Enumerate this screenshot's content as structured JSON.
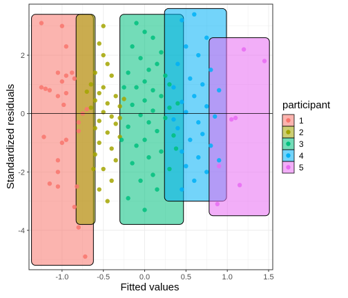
{
  "chart_data": {
    "type": "scatter",
    "title": "",
    "xlabel": "Fitted values",
    "ylabel": "Standardized residuals",
    "xlim": [
      -1.4,
      1.55
    ],
    "ylim": [
      -5.35,
      3.75
    ],
    "x_ticks": [
      -1.0,
      -0.5,
      0.0,
      0.5,
      1.0,
      1.5
    ],
    "x_tick_labels": [
      "-1.0",
      "-0.5",
      "0.0",
      "0.5",
      "1.0",
      "1.5"
    ],
    "y_ticks": [
      -4,
      -2,
      0,
      2
    ],
    "y_tick_labels": [
      "-4",
      "-2",
      "0",
      "2"
    ],
    "grid": true,
    "reference_line_y": 0,
    "legend": {
      "title": "participant",
      "position": "right",
      "entries": [
        "1",
        "2",
        "3",
        "4",
        "5"
      ]
    },
    "series": [
      {
        "name": "1",
        "color": "#F8766D",
        "box": {
          "xmin": -1.37,
          "xmax": -0.62,
          "ymin": -5.2,
          "ymax": 3.4
        },
        "points": [
          [
            -1.25,
            3.1
          ],
          [
            -1.0,
            3.0
          ],
          [
            -0.95,
            2.3
          ],
          [
            -1.05,
            1.4
          ],
          [
            -0.95,
            1.3
          ],
          [
            -1.0,
            1.1
          ],
          [
            -0.88,
            1.4
          ],
          [
            -0.85,
            1.2
          ],
          [
            -1.2,
            0.85
          ],
          [
            -1.15,
            0.8
          ],
          [
            -1.25,
            0.9
          ],
          [
            -1.05,
            0.6
          ],
          [
            -0.95,
            0.7
          ],
          [
            -0.98,
            0.3
          ],
          [
            -0.7,
            0.15
          ],
          [
            -0.75,
            0.0
          ],
          [
            -0.8,
            -0.3
          ],
          [
            -1.22,
            -0.8
          ],
          [
            -0.95,
            -0.9
          ],
          [
            -1.0,
            -1.0
          ],
          [
            -1.05,
            -1.6
          ],
          [
            -1.05,
            -2.0
          ],
          [
            -1.05,
            -2.5
          ],
          [
            -1.15,
            -2.4
          ],
          [
            -0.82,
            -2.5
          ],
          [
            -0.85,
            -3.2
          ],
          [
            -0.8,
            -3.9
          ],
          [
            -0.72,
            -4.9
          ],
          [
            -0.8,
            -0.6
          ]
        ]
      },
      {
        "name": "2",
        "color": "#A3A500",
        "box": {
          "xmin": -0.83,
          "xmax": -0.6,
          "ymin": -3.8,
          "ymax": 3.4
        },
        "points": [
          [
            -0.5,
            3.0
          ],
          [
            -0.55,
            2.4
          ],
          [
            -0.5,
            2.0
          ],
          [
            -0.45,
            1.7
          ],
          [
            -0.6,
            1.4
          ],
          [
            -0.4,
            1.3
          ],
          [
            -0.65,
            1.0
          ],
          [
            -0.5,
            0.9
          ],
          [
            -0.55,
            0.7
          ],
          [
            -0.35,
            0.6
          ],
          [
            -0.6,
            0.45
          ],
          [
            -0.45,
            0.35
          ],
          [
            -0.3,
            0.25
          ],
          [
            -0.65,
            0.2
          ],
          [
            -0.5,
            0.05
          ],
          [
            -0.4,
            -0.1
          ],
          [
            -0.55,
            -0.25
          ],
          [
            -0.35,
            -0.35
          ],
          [
            -0.6,
            -0.5
          ],
          [
            -0.45,
            -0.65
          ],
          [
            -0.3,
            -0.8
          ],
          [
            -0.55,
            -1.0
          ],
          [
            -0.4,
            -1.2
          ],
          [
            -0.6,
            -1.4
          ],
          [
            -0.35,
            -1.6
          ],
          [
            -0.5,
            -1.9
          ],
          [
            -0.4,
            -2.3
          ],
          [
            -0.55,
            -2.6
          ],
          [
            -0.45,
            -3.0
          ],
          [
            -0.3,
            -0.15
          ],
          [
            -0.25,
            0.5
          ],
          [
            -0.62,
            -1.9
          ],
          [
            -0.7,
            0.75
          ]
        ]
      },
      {
        "name": "3",
        "color": "#00BF7D",
        "box": {
          "xmin": -0.3,
          "xmax": 0.47,
          "ymin": -3.8,
          "ymax": 3.4
        },
        "points": [
          [
            -0.1,
            3.1
          ],
          [
            0.0,
            2.8
          ],
          [
            0.1,
            2.6
          ],
          [
            -0.15,
            2.3
          ],
          [
            0.2,
            2.1
          ],
          [
            -0.05,
            1.9
          ],
          [
            0.15,
            1.7
          ],
          [
            0.05,
            1.5
          ],
          [
            -0.2,
            1.4
          ],
          [
            0.25,
            1.3
          ],
          [
            0.0,
            1.1
          ],
          [
            0.3,
            1.0
          ],
          [
            -0.1,
            0.9
          ],
          [
            0.1,
            0.8
          ],
          [
            0.2,
            0.6
          ],
          [
            0.0,
            0.45
          ],
          [
            -0.15,
            0.3
          ],
          [
            0.3,
            0.2
          ],
          [
            0.1,
            0.1
          ],
          [
            -0.05,
            -0.05
          ],
          [
            0.25,
            -0.15
          ],
          [
            0.05,
            -0.3
          ],
          [
            -0.2,
            -0.45
          ],
          [
            0.15,
            -0.6
          ],
          [
            0.35,
            -0.75
          ],
          [
            0.0,
            -0.9
          ],
          [
            -0.1,
            -1.1
          ],
          [
            0.2,
            -1.3
          ],
          [
            0.05,
            -1.5
          ],
          [
            -0.15,
            -1.7
          ],
          [
            0.3,
            -1.9
          ],
          [
            0.1,
            -2.1
          ],
          [
            -0.05,
            -2.3
          ],
          [
            0.15,
            -2.6
          ],
          [
            -0.2,
            -2.9
          ],
          [
            0.0,
            -3.3
          ],
          [
            0.4,
            0.35
          ],
          [
            -0.25,
            0.9
          ],
          [
            0.38,
            -1.2
          ],
          [
            -0.28,
            -0.9
          ]
        ]
      },
      {
        "name": "4",
        "color": "#00B0F6",
        "box": {
          "xmin": 0.24,
          "xmax": 0.99,
          "ymin": -3.0,
          "ymax": 3.6
        },
        "points": [
          [
            0.45,
            3.2
          ],
          [
            0.6,
            3.4
          ],
          [
            0.75,
            2.6
          ],
          [
            0.5,
            2.3
          ],
          [
            0.65,
            2.0
          ],
          [
            0.4,
            1.7
          ],
          [
            0.8,
            1.5
          ],
          [
            0.55,
            1.2
          ],
          [
            0.7,
            1.0
          ],
          [
            0.35,
            0.9
          ],
          [
            0.9,
            0.8
          ],
          [
            0.6,
            0.6
          ],
          [
            0.45,
            0.4
          ],
          [
            0.75,
            0.25
          ],
          [
            0.5,
            0.05
          ],
          [
            0.85,
            -0.1
          ],
          [
            0.65,
            -0.3
          ],
          [
            0.4,
            -0.5
          ],
          [
            0.7,
            -0.7
          ],
          [
            0.55,
            -0.9
          ],
          [
            0.8,
            -1.1
          ],
          [
            0.45,
            -1.3
          ],
          [
            0.65,
            -1.5
          ],
          [
            0.5,
            -1.8
          ],
          [
            0.75,
            -2.0
          ],
          [
            0.6,
            -2.3
          ],
          [
            0.45,
            -2.6
          ],
          [
            0.9,
            -1.6
          ],
          [
            0.35,
            -0.2
          ]
        ]
      },
      {
        "name": "5",
        "color": "#E76BF3",
        "box": {
          "xmin": 0.78,
          "xmax": 1.51,
          "ymin": -3.5,
          "ymax": 2.6
        },
        "points": [
          [
            1.2,
            2.2
          ],
          [
            1.45,
            1.8
          ],
          [
            1.1,
            -0.15
          ],
          [
            0.9,
            -1.8
          ],
          [
            1.15,
            -2.45
          ],
          [
            0.88,
            -3.1
          ],
          [
            1.05,
            -0.2
          ]
        ]
      }
    ]
  }
}
